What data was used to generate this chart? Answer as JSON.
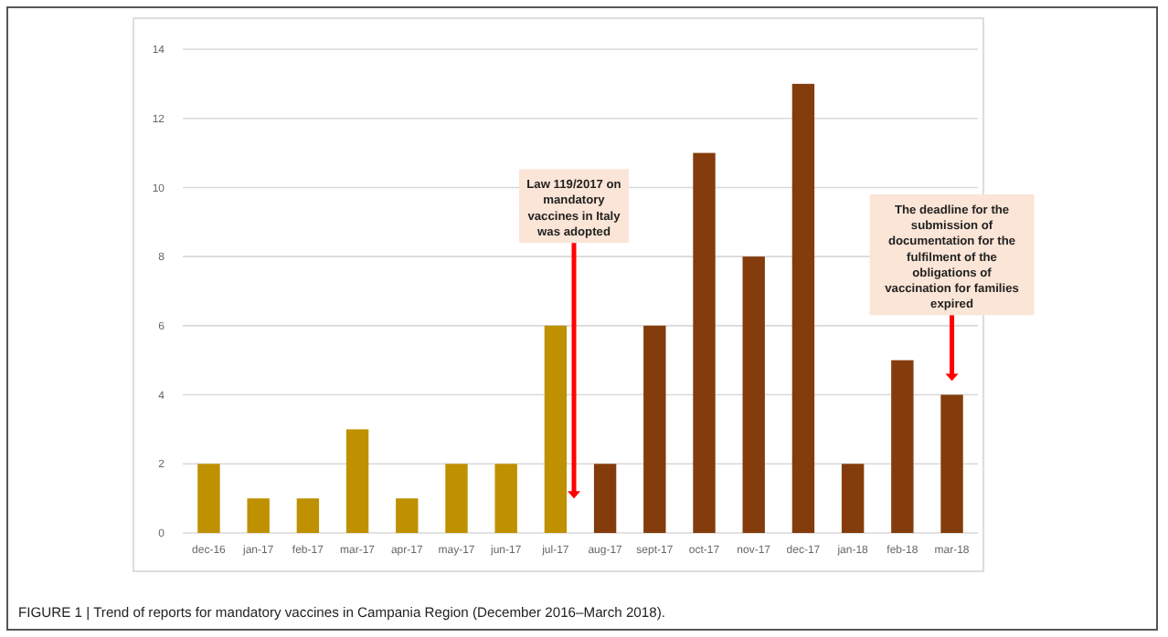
{
  "chart_data": {
    "type": "bar",
    "categories": [
      "dec-16",
      "jan-17",
      "feb-17",
      "mar-17",
      "apr-17",
      "may-17",
      "jun-17",
      "jul-17",
      "aug-17",
      "sept-17",
      "oct-17",
      "nov-17",
      "dec-17",
      "jan-18",
      "feb-18",
      "mar-18"
    ],
    "values": [
      2,
      1,
      1,
      3,
      1,
      2,
      2,
      6,
      2,
      6,
      11,
      8,
      13,
      2,
      5,
      4
    ],
    "colors": [
      "#bf9000",
      "#bf9000",
      "#bf9000",
      "#bf9000",
      "#bf9000",
      "#bf9000",
      "#bf9000",
      "#bf9000",
      "#843c0c",
      "#843c0c",
      "#843c0c",
      "#843c0c",
      "#843c0c",
      "#843c0c",
      "#843c0c",
      "#843c0c"
    ],
    "ylim": [
      0,
      14
    ],
    "yticks": [
      0,
      2,
      4,
      6,
      8,
      10,
      12,
      14
    ],
    "grid": "y",
    "annotations": [
      {
        "text": "Law 119/2017 on\nmandatory\nvaccines in Italy\nwas adopted",
        "y": 1
      },
      {
        "text": "The deadline for the\nsubmission of\ndocumentation for the\nfulfilment of the\nobligations of\nvaccination for families\nexpired",
        "x": "mar-18",
        "y": 4.4
      },
      "FIGURE 1 | Trend of reports for mandatory vaccines in Campania Region (December 2016–March 2018)."
    ]
  }
}
